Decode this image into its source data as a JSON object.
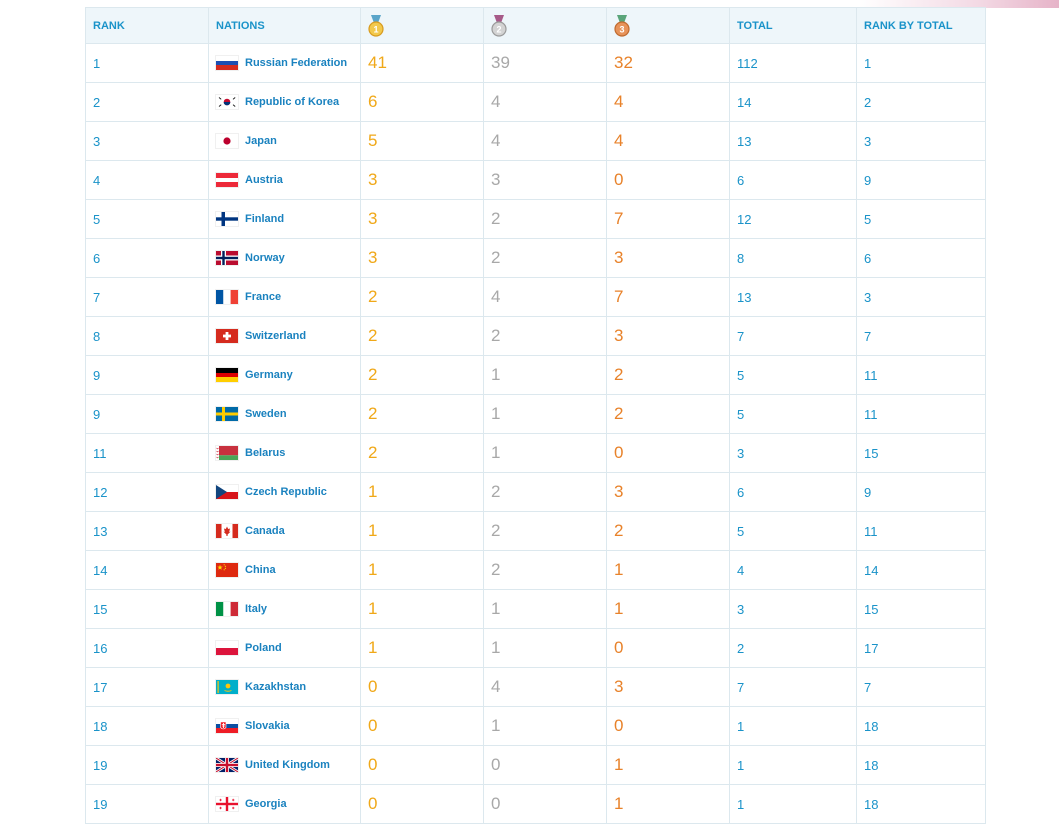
{
  "headers": {
    "rank": "RANK",
    "nations": "NATIONS",
    "total": "TOTAL",
    "rank_by_total": "RANK BY TOTAL"
  },
  "medal_icons": {
    "gold": {
      "icon": "gold-medal-icon",
      "ribbon": "#5aa5c9",
      "fill": "#f2c94c",
      "rim": "#d89b1f",
      "numeral": "1"
    },
    "silver": {
      "icon": "silver-medal-icon",
      "ribbon": "#a65a88",
      "fill": "#d3d3d3",
      "rim": "#9a9a9a",
      "numeral": "2"
    },
    "bronze": {
      "icon": "bronze-medal-icon",
      "ribbon": "#5aa57a",
      "fill": "#e7935a",
      "rim": "#bf6a2f",
      "numeral": "3"
    }
  },
  "colors": {
    "link": "#1a93c9",
    "gold": "#f0a818",
    "silver": "#a8a8a8",
    "bronze": "#e8822a",
    "header_bg": "#eef6fa",
    "border": "#dce8ee"
  },
  "rows": [
    {
      "rank": "1",
      "nation": "Russian Federation",
      "flag": "russia-flag",
      "gold": "41",
      "silver": "39",
      "bronze": "32",
      "total": "112",
      "rank_by_total": "1"
    },
    {
      "rank": "2",
      "nation": "Republic of Korea",
      "flag": "korea-flag",
      "gold": "6",
      "silver": "4",
      "bronze": "4",
      "total": "14",
      "rank_by_total": "2"
    },
    {
      "rank": "3",
      "nation": "Japan",
      "flag": "japan-flag",
      "gold": "5",
      "silver": "4",
      "bronze": "4",
      "total": "13",
      "rank_by_total": "3"
    },
    {
      "rank": "4",
      "nation": "Austria",
      "flag": "austria-flag",
      "gold": "3",
      "silver": "3",
      "bronze": "0",
      "total": "6",
      "rank_by_total": "9"
    },
    {
      "rank": "5",
      "nation": "Finland",
      "flag": "finland-flag",
      "gold": "3",
      "silver": "2",
      "bronze": "7",
      "total": "12",
      "rank_by_total": "5"
    },
    {
      "rank": "6",
      "nation": "Norway",
      "flag": "norway-flag",
      "gold": "3",
      "silver": "2",
      "bronze": "3",
      "total": "8",
      "rank_by_total": "6"
    },
    {
      "rank": "7",
      "nation": "France",
      "flag": "france-flag",
      "gold": "2",
      "silver": "4",
      "bronze": "7",
      "total": "13",
      "rank_by_total": "3"
    },
    {
      "rank": "8",
      "nation": "Switzerland",
      "flag": "switzerland-flag",
      "gold": "2",
      "silver": "2",
      "bronze": "3",
      "total": "7",
      "rank_by_total": "7"
    },
    {
      "rank": "9",
      "nation": "Germany",
      "flag": "germany-flag",
      "gold": "2",
      "silver": "1",
      "bronze": "2",
      "total": "5",
      "rank_by_total": "11"
    },
    {
      "rank": "9",
      "nation": "Sweden",
      "flag": "sweden-flag",
      "gold": "2",
      "silver": "1",
      "bronze": "2",
      "total": "5",
      "rank_by_total": "11"
    },
    {
      "rank": "11",
      "nation": "Belarus",
      "flag": "belarus-flag",
      "gold": "2",
      "silver": "1",
      "bronze": "0",
      "total": "3",
      "rank_by_total": "15"
    },
    {
      "rank": "12",
      "nation": "Czech Republic",
      "flag": "czech-flag",
      "gold": "1",
      "silver": "2",
      "bronze": "3",
      "total": "6",
      "rank_by_total": "9"
    },
    {
      "rank": "13",
      "nation": "Canada",
      "flag": "canada-flag",
      "gold": "1",
      "silver": "2",
      "bronze": "2",
      "total": "5",
      "rank_by_total": "11"
    },
    {
      "rank": "14",
      "nation": "China",
      "flag": "china-flag",
      "gold": "1",
      "silver": "2",
      "bronze": "1",
      "total": "4",
      "rank_by_total": "14"
    },
    {
      "rank": "15",
      "nation": "Italy",
      "flag": "italy-flag",
      "gold": "1",
      "silver": "1",
      "bronze": "1",
      "total": "3",
      "rank_by_total": "15"
    },
    {
      "rank": "16",
      "nation": "Poland",
      "flag": "poland-flag",
      "gold": "1",
      "silver": "1",
      "bronze": "0",
      "total": "2",
      "rank_by_total": "17"
    },
    {
      "rank": "17",
      "nation": "Kazakhstan",
      "flag": "kazakhstan-flag",
      "gold": "0",
      "silver": "4",
      "bronze": "3",
      "total": "7",
      "rank_by_total": "7"
    },
    {
      "rank": "18",
      "nation": "Slovakia",
      "flag": "slovakia-flag",
      "gold": "0",
      "silver": "1",
      "bronze": "0",
      "total": "1",
      "rank_by_total": "18"
    },
    {
      "rank": "19",
      "nation": "United Kingdom",
      "flag": "uk-flag",
      "gold": "0",
      "silver": "0",
      "bronze": "1",
      "total": "1",
      "rank_by_total": "18"
    },
    {
      "rank": "19",
      "nation": "Georgia",
      "flag": "georgia-flag",
      "gold": "0",
      "silver": "0",
      "bronze": "1",
      "total": "1",
      "rank_by_total": "18"
    }
  ]
}
